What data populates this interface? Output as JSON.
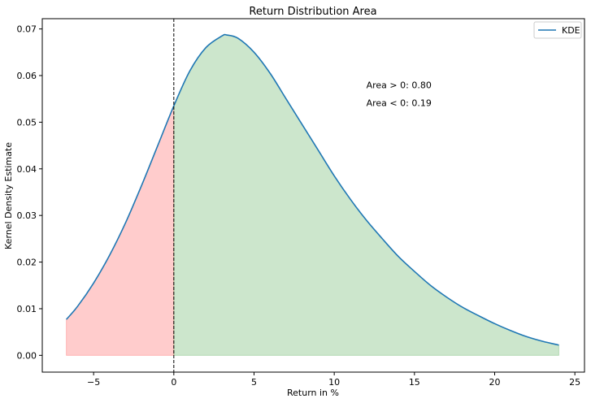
{
  "chart_data": {
    "type": "area",
    "title": "Return Distribution Area",
    "xlabel": "Return in %",
    "ylabel": "Kernel Density Estimate",
    "xlim": [
      -8.2,
      25.6
    ],
    "ylim": [
      -0.0036,
      0.0722
    ],
    "x_ticks": [
      -5,
      0,
      5,
      10,
      15,
      20,
      25
    ],
    "x_tick_labels": [
      "−5",
      "0",
      "5",
      "10",
      "15",
      "20",
      "25"
    ],
    "y_ticks": [
      0.0,
      0.01,
      0.02,
      0.03,
      0.04,
      0.05,
      0.06,
      0.07
    ],
    "y_tick_labels": [
      "0.00",
      "0.01",
      "0.02",
      "0.03",
      "0.04",
      "0.05",
      "0.06",
      "0.07"
    ],
    "grid": false,
    "legend": {
      "position": "top-right",
      "entries": [
        "KDE"
      ]
    },
    "series": [
      {
        "name": "KDE",
        "color": "#1f77b4",
        "x": [
          -6.7,
          -6,
          -5,
          -4,
          -3,
          -2,
          -1,
          0,
          1,
          2,
          3,
          3.3,
          4,
          5,
          6,
          7,
          8,
          9,
          10,
          11,
          12,
          13,
          14,
          15,
          16,
          17,
          18,
          19,
          20,
          21,
          22,
          23,
          24
        ],
        "y": [
          0.0077,
          0.0105,
          0.0155,
          0.0215,
          0.0285,
          0.0365,
          0.045,
          0.0535,
          0.061,
          0.066,
          0.0685,
          0.0687,
          0.068,
          0.065,
          0.0605,
          0.055,
          0.0495,
          0.044,
          0.0385,
          0.0335,
          0.029,
          0.025,
          0.0212,
          0.018,
          0.015,
          0.0125,
          0.0103,
          0.0085,
          0.0068,
          0.0053,
          0.004,
          0.003,
          0.0022
        ]
      }
    ],
    "fills": [
      {
        "label": "negative",
        "from": -6.7,
        "to": 0,
        "color": "#ff0000",
        "alpha": 0.2
      },
      {
        "label": "positive",
        "from": 0,
        "to": 24,
        "color": "#008000",
        "alpha": 0.2
      }
    ],
    "vline": {
      "x": 0,
      "color": "#000000",
      "style": "dashed"
    },
    "annotations": [
      {
        "text": "Area > 0: 0.80",
        "x": 12,
        "y": 0.0573
      },
      {
        "text": "Area < 0: 0.19",
        "x": 12,
        "y": 0.0535
      }
    ]
  }
}
